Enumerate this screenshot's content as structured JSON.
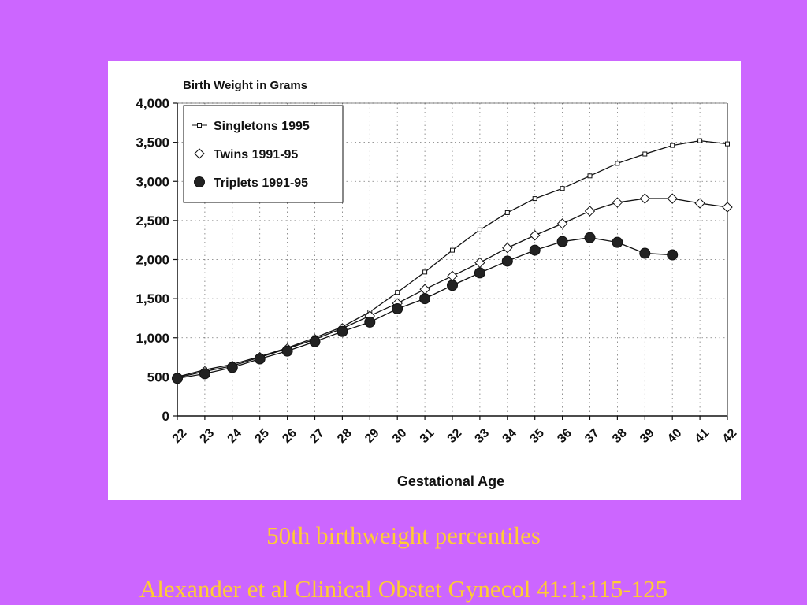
{
  "colors": {
    "background": "#cc66ff",
    "panel": "#ffffff",
    "caption": "#ffcc33",
    "ink": "#111111"
  },
  "captions": {
    "title": "50th birthweight percentiles",
    "source": "Alexander et al Clinical Obstet Gynecol 41:1;115-125"
  },
  "chart_data": {
    "type": "line",
    "title": "Birth Weight in Grams",
    "xlabel": "Gestational Age",
    "ylabel": "",
    "x": [
      22,
      23,
      24,
      25,
      26,
      27,
      28,
      29,
      30,
      31,
      32,
      33,
      34,
      35,
      36,
      37,
      38,
      39,
      40,
      41,
      42
    ],
    "x_ticks": [
      "22",
      "23",
      "24",
      "25",
      "26",
      "27",
      "28",
      "29",
      "30",
      "31",
      "32",
      "33",
      "34",
      "35",
      "36",
      "37",
      "38",
      "39",
      "40",
      "41",
      "42"
    ],
    "ylim": [
      0,
      4000
    ],
    "y_ticks": [
      0,
      500,
      1000,
      1500,
      2000,
      2500,
      3000,
      3500,
      4000
    ],
    "y_tick_labels": [
      "0",
      "500",
      "1,000",
      "1,500",
      "2,000",
      "2,500",
      "3,000",
      "3,500",
      "4,000"
    ],
    "grid": true,
    "legend_position": "top-left",
    "series": [
      {
        "name": "Singletons 1995",
        "marker": "square",
        "values": [
          500,
          590,
          660,
          760,
          870,
          1000,
          1140,
          1330,
          1580,
          1840,
          2120,
          2380,
          2600,
          2780,
          2910,
          3070,
          3230,
          3350,
          3460,
          3520,
          3480
        ]
      },
      {
        "name": "Twins 1991-95",
        "marker": "diamond",
        "values": [
          490,
          570,
          640,
          750,
          860,
          980,
          1120,
          1280,
          1440,
          1620,
          1790,
          1960,
          2150,
          2310,
          2460,
          2620,
          2730,
          2780,
          2780,
          2720,
          2670
        ]
      },
      {
        "name": "Triplets 1991-95",
        "marker": "circle",
        "values": [
          480,
          540,
          620,
          730,
          830,
          950,
          1080,
          1200,
          1370,
          1500,
          1670,
          1830,
          1980,
          2120,
          2230,
          2280,
          2220,
          2080,
          2060,
          null,
          null
        ]
      }
    ]
  }
}
